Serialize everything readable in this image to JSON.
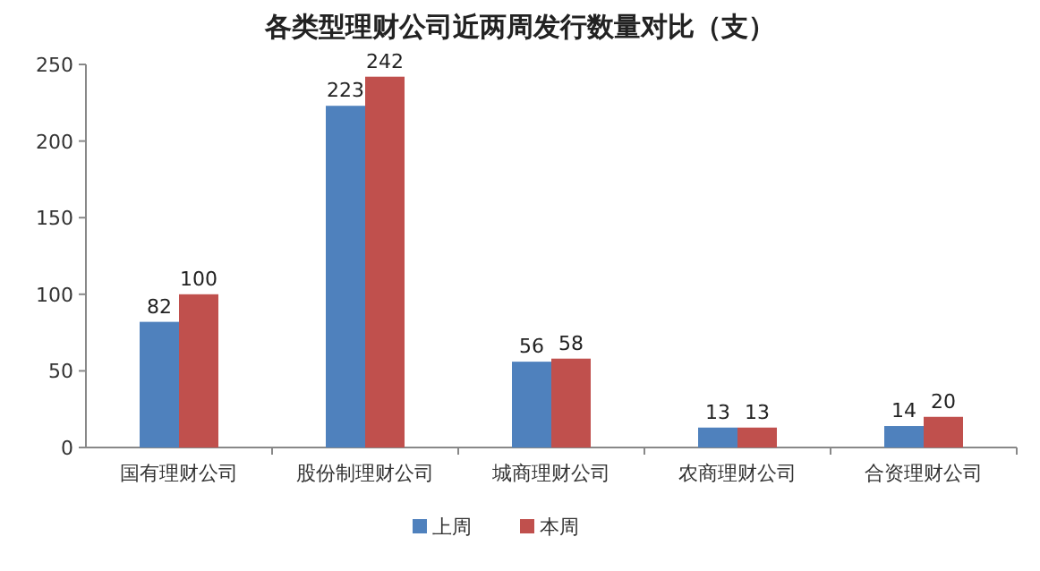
{
  "chart_data": {
    "type": "bar",
    "title": "各类型理财公司近两周发行数量对比（支）",
    "categories": [
      "国有理财公司",
      "股份制理财公司",
      "城商理财公司",
      "农商理财公司",
      "合资理财公司"
    ],
    "series": [
      {
        "name": "上周",
        "color": "#4f81bd",
        "values": [
          82,
          223,
          56,
          13,
          14
        ]
      },
      {
        "name": "本周",
        "color": "#c0504d",
        "values": [
          100,
          242,
          58,
          13,
          20
        ]
      }
    ],
    "ylim": [
      0,
      250
    ],
    "yticks": [
      0,
      50,
      100,
      150,
      200,
      250
    ],
    "data_labels": true,
    "legend": "bottom",
    "grid": false
  }
}
